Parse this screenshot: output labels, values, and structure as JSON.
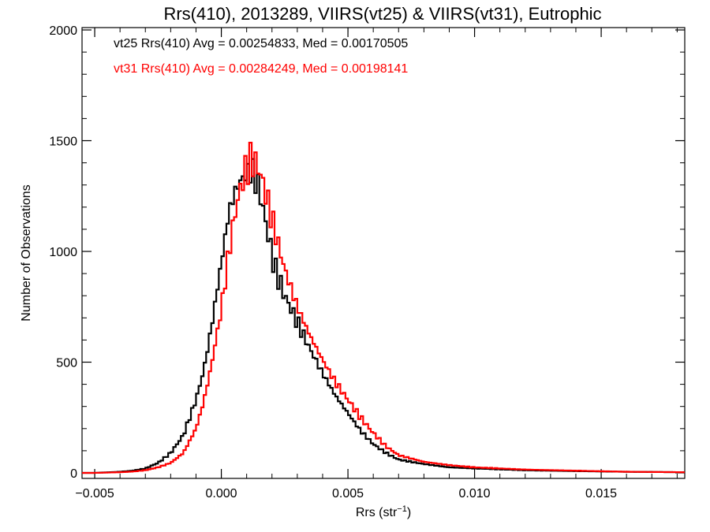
{
  "chart_data": {
    "type": "line",
    "title": "Rrs(410), 2013289, VIIRS(vt25) & VIIRS(vt31), Eutrophic",
    "xlabel_main": "Rrs (str",
    "xlabel_sup": "−1",
    "xlabel_end": ")",
    "ylabel": "Number of Observations",
    "xlim": [
      -0.0055,
      0.0183
    ],
    "ylim": [
      0,
      2000
    ],
    "xticks": [
      -0.005,
      0.0,
      0.005,
      0.01,
      0.015
    ],
    "xtick_labels": [
      "−0.005",
      "0.000",
      "0.005",
      "0.010",
      "0.015"
    ],
    "yticks": [
      0,
      500,
      1000,
      1500,
      2000
    ],
    "ytick_labels": [
      "0",
      "500",
      "1000",
      "1500",
      "2000"
    ],
    "grid": false,
    "legend_position": "top-left",
    "series": [
      {
        "name": "vt25",
        "color": "#000000",
        "annotation": "vt25 Rrs(410) Avg = 0.00254833, Med = 0.00170505",
        "x": [
          -0.005,
          -0.004,
          -0.0035,
          -0.003,
          -0.0025,
          -0.002,
          -0.0015,
          -0.001,
          -0.0007,
          -0.0004,
          0.0,
          0.0003,
          0.0006,
          0.0009,
          0.0012,
          0.0015,
          0.0018,
          0.0021,
          0.0025,
          0.003,
          0.0035,
          0.004,
          0.0045,
          0.005,
          0.0055,
          0.006,
          0.0065,
          0.007,
          0.008,
          0.009,
          0.01,
          0.012,
          0.014,
          0.016,
          0.0183
        ],
        "y": [
          0,
          5,
          10,
          20,
          45,
          90,
          170,
          330,
          460,
          650,
          950,
          1180,
          1290,
          1340,
          1370,
          1280,
          1100,
          930,
          800,
          680,
          560,
          450,
          350,
          270,
          190,
          130,
          90,
          60,
          40,
          25,
          20,
          12,
          8,
          5,
          3
        ]
      },
      {
        "name": "vt31",
        "color": "#ff0000",
        "annotation": "vt31 Rrs(410) Avg = 0.00284249, Med = 0.00198141",
        "x": [
          -0.005,
          -0.004,
          -0.0035,
          -0.003,
          -0.0025,
          -0.002,
          -0.0015,
          -0.001,
          -0.0007,
          -0.0004,
          0.0,
          0.0003,
          0.0006,
          0.0009,
          0.0012,
          0.0015,
          0.0018,
          0.0021,
          0.0025,
          0.003,
          0.0035,
          0.004,
          0.0045,
          0.005,
          0.0055,
          0.006,
          0.0065,
          0.007,
          0.008,
          0.009,
          0.01,
          0.012,
          0.014,
          0.016,
          0.0183
        ],
        "y": [
          0,
          3,
          6,
          12,
          25,
          45,
          90,
          200,
          320,
          480,
          740,
          1000,
          1210,
          1350,
          1420,
          1370,
          1240,
          1100,
          920,
          750,
          620,
          510,
          410,
          330,
          250,
          180,
          120,
          80,
          50,
          35,
          25,
          15,
          10,
          5,
          3
        ]
      }
    ]
  }
}
